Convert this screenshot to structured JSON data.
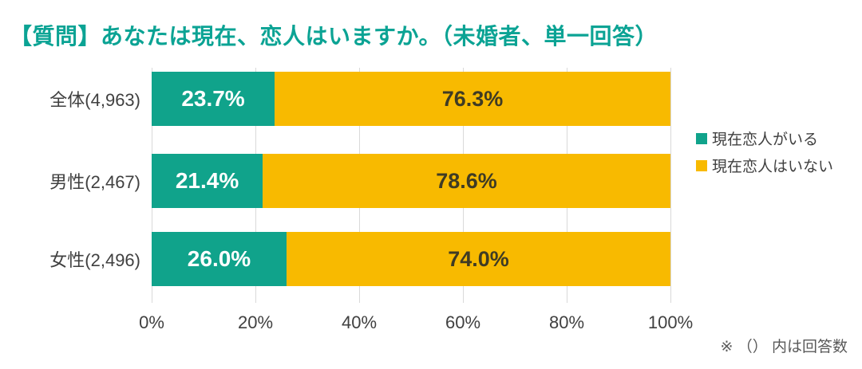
{
  "title": {
    "text": "【質問】あなたは現在、恋人はいますか。（未婚者、単一回答）",
    "color": "#0ba394"
  },
  "footnote": {
    "text": "※ （） 内は回答数"
  },
  "colors": {
    "grid": "#d9d9d9",
    "bar_label_on_teal": "#ffffff",
    "bar_label_on_gold": "#3f3b24",
    "axis_text": "#404040"
  },
  "chart_data": {
    "type": "bar",
    "orientation": "horizontal",
    "stacked": true,
    "grid": true,
    "legend_position": "right",
    "xlim": [
      0,
      100
    ],
    "x_ticks": [
      "0%",
      "20%",
      "40%",
      "60%",
      "80%",
      "100%"
    ],
    "categories": [
      "全体(4,963)",
      "男性(2,467)",
      "女性(2,496)"
    ],
    "series": [
      {
        "name": "現在恋人がいる",
        "color": "#10a38b",
        "values": [
          23.7,
          21.4,
          26.0
        ]
      },
      {
        "name": "現在恋人はいない",
        "color": "#f8ba00",
        "values": [
          76.3,
          78.6,
          74.0
        ]
      }
    ],
    "rows": [
      {
        "category": "全体(4,963)",
        "values": [
          23.7,
          76.3
        ],
        "labels": [
          "23.7%",
          "76.3%"
        ]
      },
      {
        "category": "男性(2,467)",
        "values": [
          21.4,
          78.6
        ],
        "labels": [
          "21.4%",
          "78.6%"
        ]
      },
      {
        "category": "女性(2,496)",
        "values": [
          26.0,
          74.0
        ],
        "labels": [
          "26.0%",
          "74.0%"
        ]
      }
    ]
  }
}
